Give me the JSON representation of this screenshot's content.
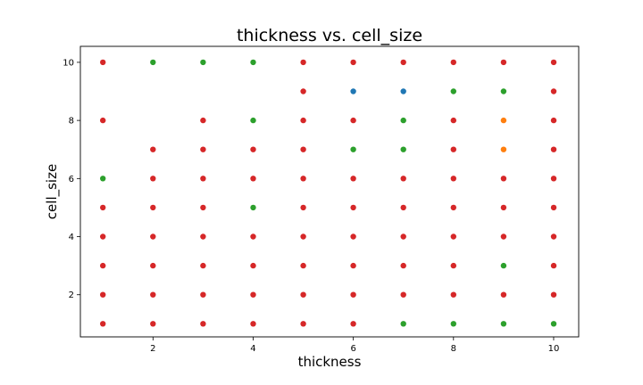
{
  "chart_data": {
    "type": "scatter",
    "title": "thickness vs. cell_size",
    "xlabel": "thickness",
    "ylabel": "cell_size",
    "xlim": [
      0.55,
      10.5
    ],
    "ylim": [
      0.55,
      10.55
    ],
    "xticks": [
      2,
      4,
      6,
      8,
      10
    ],
    "yticks": [
      2,
      4,
      6,
      8,
      10
    ],
    "grid": false,
    "colors": {
      "red": "#d62728",
      "green": "#2ca02c",
      "blue": "#1f77b4",
      "orange": "#ff7f0e"
    },
    "points": [
      {
        "x": 1,
        "y": 10,
        "c": "red"
      },
      {
        "x": 1,
        "y": 8,
        "c": "red"
      },
      {
        "x": 1,
        "y": 6,
        "c": "green"
      },
      {
        "x": 1,
        "y": 5,
        "c": "red"
      },
      {
        "x": 1,
        "y": 4,
        "c": "red"
      },
      {
        "x": 1,
        "y": 3,
        "c": "red"
      },
      {
        "x": 1,
        "y": 2,
        "c": "red"
      },
      {
        "x": 1,
        "y": 1,
        "c": "red"
      },
      {
        "x": 2,
        "y": 10,
        "c": "green"
      },
      {
        "x": 2,
        "y": 7,
        "c": "red"
      },
      {
        "x": 2,
        "y": 6,
        "c": "red"
      },
      {
        "x": 2,
        "y": 5,
        "c": "red"
      },
      {
        "x": 2,
        "y": 4,
        "c": "red"
      },
      {
        "x": 2,
        "y": 3,
        "c": "red"
      },
      {
        "x": 2,
        "y": 2,
        "c": "red"
      },
      {
        "x": 2,
        "y": 1,
        "c": "red"
      },
      {
        "x": 3,
        "y": 10,
        "c": "green"
      },
      {
        "x": 3,
        "y": 8,
        "c": "red"
      },
      {
        "x": 3,
        "y": 7,
        "c": "red"
      },
      {
        "x": 3,
        "y": 6,
        "c": "red"
      },
      {
        "x": 3,
        "y": 5,
        "c": "red"
      },
      {
        "x": 3,
        "y": 4,
        "c": "red"
      },
      {
        "x": 3,
        "y": 3,
        "c": "red"
      },
      {
        "x": 3,
        "y": 2,
        "c": "red"
      },
      {
        "x": 3,
        "y": 1,
        "c": "red"
      },
      {
        "x": 4,
        "y": 10,
        "c": "green"
      },
      {
        "x": 4,
        "y": 8,
        "c": "green"
      },
      {
        "x": 4,
        "y": 7,
        "c": "red"
      },
      {
        "x": 4,
        "y": 6,
        "c": "red"
      },
      {
        "x": 4,
        "y": 5,
        "c": "green"
      },
      {
        "x": 4,
        "y": 4,
        "c": "red"
      },
      {
        "x": 4,
        "y": 3,
        "c": "red"
      },
      {
        "x": 4,
        "y": 2,
        "c": "red"
      },
      {
        "x": 4,
        "y": 1,
        "c": "red"
      },
      {
        "x": 5,
        "y": 10,
        "c": "red"
      },
      {
        "x": 5,
        "y": 9,
        "c": "red"
      },
      {
        "x": 5,
        "y": 8,
        "c": "red"
      },
      {
        "x": 5,
        "y": 7,
        "c": "red"
      },
      {
        "x": 5,
        "y": 6,
        "c": "red"
      },
      {
        "x": 5,
        "y": 5,
        "c": "red"
      },
      {
        "x": 5,
        "y": 4,
        "c": "red"
      },
      {
        "x": 5,
        "y": 3,
        "c": "red"
      },
      {
        "x": 5,
        "y": 2,
        "c": "red"
      },
      {
        "x": 5,
        "y": 1,
        "c": "red"
      },
      {
        "x": 6,
        "y": 10,
        "c": "red"
      },
      {
        "x": 6,
        "y": 9,
        "c": "blue"
      },
      {
        "x": 6,
        "y": 8,
        "c": "red"
      },
      {
        "x": 6,
        "y": 7,
        "c": "green"
      },
      {
        "x": 6,
        "y": 6,
        "c": "red"
      },
      {
        "x": 6,
        "y": 5,
        "c": "red"
      },
      {
        "x": 6,
        "y": 4,
        "c": "red"
      },
      {
        "x": 6,
        "y": 3,
        "c": "red"
      },
      {
        "x": 6,
        "y": 2,
        "c": "red"
      },
      {
        "x": 6,
        "y": 1,
        "c": "red"
      },
      {
        "x": 7,
        "y": 10,
        "c": "red"
      },
      {
        "x": 7,
        "y": 9,
        "c": "blue"
      },
      {
        "x": 7,
        "y": 8,
        "c": "green"
      },
      {
        "x": 7,
        "y": 7,
        "c": "green"
      },
      {
        "x": 7,
        "y": 6,
        "c": "red"
      },
      {
        "x": 7,
        "y": 5,
        "c": "red"
      },
      {
        "x": 7,
        "y": 4,
        "c": "red"
      },
      {
        "x": 7,
        "y": 3,
        "c": "red"
      },
      {
        "x": 7,
        "y": 2,
        "c": "red"
      },
      {
        "x": 7,
        "y": 1,
        "c": "green"
      },
      {
        "x": 8,
        "y": 10,
        "c": "red"
      },
      {
        "x": 8,
        "y": 9,
        "c": "green"
      },
      {
        "x": 8,
        "y": 8,
        "c": "red"
      },
      {
        "x": 8,
        "y": 7,
        "c": "red"
      },
      {
        "x": 8,
        "y": 6,
        "c": "red"
      },
      {
        "x": 8,
        "y": 5,
        "c": "red"
      },
      {
        "x": 8,
        "y": 4,
        "c": "red"
      },
      {
        "x": 8,
        "y": 3,
        "c": "red"
      },
      {
        "x": 8,
        "y": 2,
        "c": "red"
      },
      {
        "x": 8,
        "y": 1,
        "c": "green"
      },
      {
        "x": 9,
        "y": 10,
        "c": "red"
      },
      {
        "x": 9,
        "y": 9,
        "c": "green"
      },
      {
        "x": 9,
        "y": 8,
        "c": "orange"
      },
      {
        "x": 9,
        "y": 7,
        "c": "orange"
      },
      {
        "x": 9,
        "y": 6,
        "c": "red"
      },
      {
        "x": 9,
        "y": 5,
        "c": "red"
      },
      {
        "x": 9,
        "y": 4,
        "c": "red"
      },
      {
        "x": 9,
        "y": 3,
        "c": "green"
      },
      {
        "x": 9,
        "y": 2,
        "c": "red"
      },
      {
        "x": 9,
        "y": 1,
        "c": "green"
      },
      {
        "x": 10,
        "y": 10,
        "c": "red"
      },
      {
        "x": 10,
        "y": 9,
        "c": "red"
      },
      {
        "x": 10,
        "y": 8,
        "c": "red"
      },
      {
        "x": 10,
        "y": 7,
        "c": "red"
      },
      {
        "x": 10,
        "y": 6,
        "c": "red"
      },
      {
        "x": 10,
        "y": 5,
        "c": "red"
      },
      {
        "x": 10,
        "y": 4,
        "c": "red"
      },
      {
        "x": 10,
        "y": 3,
        "c": "red"
      },
      {
        "x": 10,
        "y": 2,
        "c": "red"
      },
      {
        "x": 10,
        "y": 1,
        "c": "green"
      }
    ]
  }
}
